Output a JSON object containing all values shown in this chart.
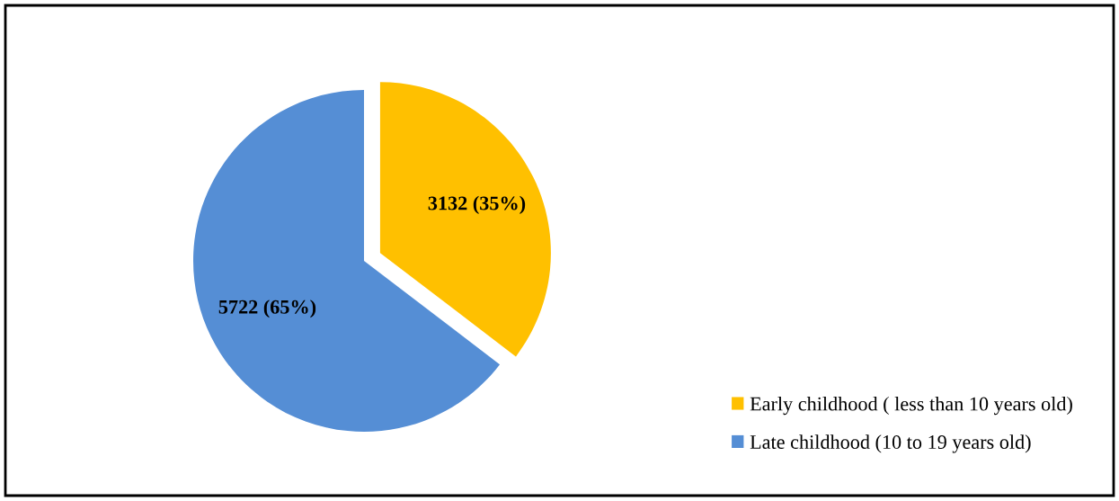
{
  "chart_data": {
    "type": "pie",
    "categories": [
      "Early childhood ( less than 10 years old)",
      "Late childhood (10 to 19 years old)"
    ],
    "values": [
      3132,
      5722
    ],
    "colors": [
      "#ffc000",
      "#558ed5"
    ],
    "value_labels": [
      "3132 (35%)",
      "5722 (65%)"
    ],
    "legend": "bottom right"
  }
}
